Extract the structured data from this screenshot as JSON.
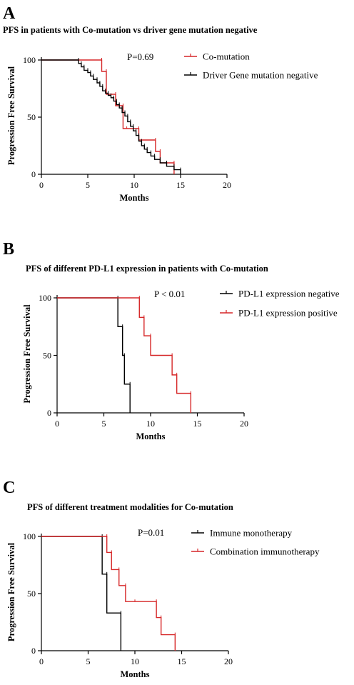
{
  "panels": [
    {
      "letter": "A",
      "title": "PFS in patients with Co-mutation vs driver gene mutation negative",
      "pvalue": "P=0.69",
      "legend": [
        "Co-mutation",
        "Driver Gene mutation negative"
      ]
    },
    {
      "letter": "B",
      "title": "PFS of different PD-L1 expression in patients with Co-mutation",
      "pvalue": "P < 0.01",
      "legend": [
        "PD-L1 expression negative",
        "PD-L1 expression positive"
      ]
    },
    {
      "letter": "C",
      "title": "PFS of different treatment modalities for Co-mutation",
      "pvalue": "P=0.01",
      "legend": [
        "Immune monotherapy",
        "Combination immunotherapy"
      ]
    }
  ],
  "chart_data": [
    {
      "type": "line",
      "step": true,
      "title": "PFS in patients with Co-mutation vs driver gene mutation negative",
      "xlabel": "Months",
      "ylabel": "Progression Free Survival",
      "xlim": [
        0,
        20
      ],
      "ylim": [
        0,
        100
      ],
      "xticks": [
        0,
        5,
        10,
        15,
        20
      ],
      "yticks": [
        0,
        50,
        100
      ],
      "annotation": "P=0.69",
      "legend_position": "top-right",
      "series": [
        {
          "name": "Co-mutation",
          "color": "#d62728",
          "x": [
            0,
            6.5,
            7,
            8,
            8.8,
            9.2,
            10.5,
            12.3,
            12.8,
            14.3
          ],
          "y": [
            100,
            90,
            70,
            60,
            40,
            40,
            30,
            20,
            10,
            0
          ]
        },
        {
          "name": "Driver Gene mutation negative",
          "color": "#000000",
          "x": [
            0,
            4,
            4.3,
            4.6,
            5,
            5.3,
            5.6,
            6,
            6.3,
            6.6,
            6.9,
            7.2,
            7.5,
            7.8,
            8.1,
            8.4,
            8.7,
            9,
            9.3,
            9.6,
            9.9,
            10.2,
            10.5,
            10.8,
            11.1,
            11.4,
            11.8,
            12.2,
            12.8,
            13.5,
            14.3,
            15
          ],
          "y": [
            100,
            97,
            94,
            91,
            89,
            86,
            83,
            80,
            77,
            73,
            71,
            69,
            67,
            64,
            61,
            58,
            54,
            51,
            46,
            42,
            38,
            34,
            29,
            25,
            22,
            19,
            16,
            13,
            10,
            7,
            4,
            0
          ]
        }
      ]
    },
    {
      "type": "line",
      "step": true,
      "title": "PFS of different PD-L1 expression in patients with Co-mutation",
      "xlabel": "Months",
      "ylabel": "Progression Free Survival",
      "xlim": [
        0,
        20
      ],
      "ylim": [
        0,
        100
      ],
      "xticks": [
        0,
        5,
        10,
        15,
        20
      ],
      "yticks": [
        0,
        50,
        100
      ],
      "annotation": "P < 0.01",
      "legend_position": "top-right",
      "series": [
        {
          "name": "PD-L1 expression negative",
          "color": "#000000",
          "x": [
            0,
            6.5,
            7,
            7.2,
            7.8
          ],
          "y": [
            100,
            75,
            50,
            25,
            0
          ]
        },
        {
          "name": "PD-L1 expression positive",
          "color": "#d62728",
          "x": [
            0,
            8.8,
            9.3,
            10,
            12.3,
            12.8,
            14.3
          ],
          "y": [
            100,
            83,
            67,
            50,
            33,
            17,
            0
          ]
        }
      ]
    },
    {
      "type": "line",
      "step": true,
      "title": "PFS of different treatment modalities for Co-mutation",
      "xlabel": "Months",
      "ylabel": "Progression Free Survival",
      "xlim": [
        0,
        20
      ],
      "ylim": [
        0,
        100
      ],
      "xticks": [
        0,
        5,
        10,
        15,
        20
      ],
      "yticks": [
        0,
        50,
        100
      ],
      "annotation": "P=0.01",
      "legend_position": "top-right",
      "series": [
        {
          "name": "Immune monotherapy",
          "color": "#000000",
          "x": [
            0,
            6.5,
            7,
            8.5
          ],
          "y": [
            100,
            67,
            33,
            0
          ]
        },
        {
          "name": "Combination immunotherapy",
          "color": "#d62728",
          "x": [
            0,
            7,
            7.5,
            8.3,
            9,
            10,
            12.3,
            12.8,
            14.3
          ],
          "y": [
            100,
            86,
            71,
            57,
            43,
            43,
            29,
            14,
            0
          ]
        }
      ]
    }
  ]
}
